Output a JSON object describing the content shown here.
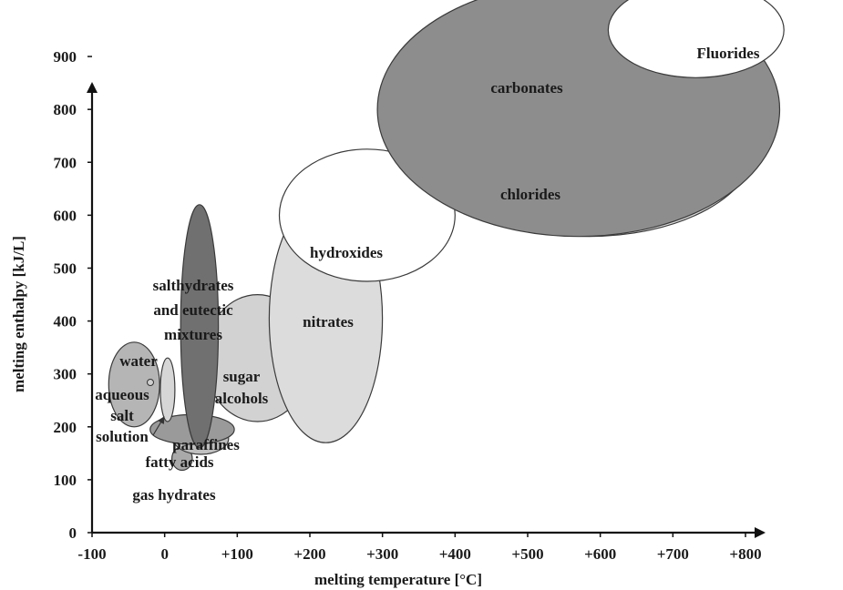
{
  "chart_data": {
    "type": "ellipse-region",
    "xlabel": "melting temperature [°C]",
    "ylabel": "melting enthalpy [kJ/L]",
    "xlim": [
      -100,
      800
    ],
    "ylim": [
      0,
      950
    ],
    "x_ticks": [
      "-100",
      "0",
      "+100",
      "+200",
      "+300",
      "+400",
      "+500",
      "+600",
      "+700",
      "+800"
    ],
    "y_ticks": [
      "0",
      "100",
      "200",
      "300",
      "400",
      "500",
      "600",
      "700",
      "800",
      "900"
    ],
    "regions": [
      {
        "id": "gas-hydrates",
        "cx": 24,
        "cy": 140,
        "rx": 14,
        "ry": 22,
        "fill": "#a9a9a9",
        "label_lines": [
          "gas hydrates"
        ]
      },
      {
        "id": "fatty-acids",
        "cx": 50,
        "cy": 178,
        "rx": 38,
        "ry": 30,
        "fill": "#bfbfbf",
        "label_lines": [
          "fatty acids"
        ]
      },
      {
        "id": "paraffines",
        "cx": 38,
        "cy": 195,
        "rx": 58,
        "ry": 28,
        "fill": "#9a9a9a",
        "label_lines": [
          "paraffines"
        ]
      },
      {
        "id": "aqueous-salt-solution",
        "cx": -42,
        "cy": 280,
        "rx": 35,
        "ry": 80,
        "fill": "#b5b5b5",
        "label_lines": [
          "aqueous",
          "salt",
          "solution"
        ]
      },
      {
        "id": "water",
        "cx": 4,
        "cy": 270,
        "rx": 10,
        "ry": 60,
        "fill": "#d6d6d6",
        "label_lines": [
          "water"
        ]
      },
      {
        "id": "sugar-alcohols",
        "cx": 128,
        "cy": 330,
        "rx": 73,
        "ry": 120,
        "fill": "#d2d2d2",
        "label_lines": [
          "sugar",
          "alcohols"
        ]
      },
      {
        "id": "salthydrates-and-eutectic-mixtures",
        "cx": 48,
        "cy": 390,
        "rx": 26,
        "ry": 230,
        "fill": "#707070",
        "label_lines": [
          "salthydrates",
          "and eutectic",
          "mixtures"
        ]
      },
      {
        "id": "nitrates",
        "cx": 222,
        "cy": 405,
        "rx": 78,
        "ry": 235,
        "fill": "#dcdcdc",
        "label_lines": [
          "nitrates"
        ]
      },
      {
        "id": "hydroxides",
        "cx": 279,
        "cy": 600,
        "rx": 121,
        "ry": 125,
        "fill": "#ffffff",
        "label_lines": [
          "hydroxides"
        ]
      },
      {
        "id": "chlorides",
        "cx": 585,
        "cy": 735,
        "rx": 230,
        "ry": 175,
        "fill": "#dddddd",
        "label_lines": [
          "chlorides"
        ]
      },
      {
        "id": "carbonates",
        "cx": 570,
        "cy": 800,
        "rx": 277,
        "ry": 240,
        "fill": "#8d8d8d",
        "label_lines": [
          "carbonates"
        ]
      },
      {
        "id": "fluorides",
        "cx": 732,
        "cy": 950,
        "rx": 121,
        "ry": 90,
        "fill": "#ffffff",
        "label_lines": [
          "Fluorides"
        ]
      }
    ]
  }
}
